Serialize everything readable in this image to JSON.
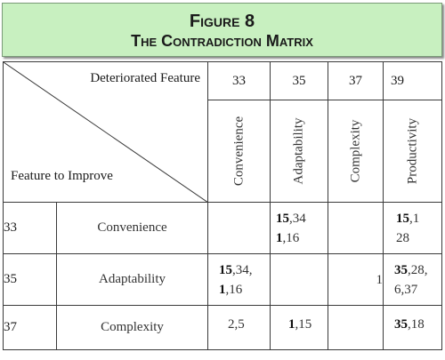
{
  "figure": {
    "line1": "Figure 8",
    "line2": "The Contradiction Matrix"
  },
  "header": {
    "deteriorated_label": "Deteriorated Feature",
    "improve_label": "Feature to Improve",
    "columns": [
      {
        "number": "33",
        "name": "Convenience"
      },
      {
        "number": "35",
        "name": "Adaptability"
      },
      {
        "number": "37",
        "name": "Complexity"
      },
      {
        "number": "39",
        "name": "Productivity"
      }
    ]
  },
  "rows": [
    {
      "number": "33",
      "name": "Convenience",
      "cells": [
        {
          "lines": []
        },
        {
          "lines": [
            [
              {
                "b": "15"
              },
              {
                "t": ",34"
              }
            ],
            [
              {
                "b": "1"
              },
              {
                "t": ",16"
              }
            ]
          ]
        },
        {
          "lines": []
        },
        {
          "lines": [
            [
              {
                "b": "15"
              },
              {
                "t": ",1"
              }
            ],
            [
              {
                "t": "28"
              }
            ]
          ]
        }
      ]
    },
    {
      "number": "35",
      "name": "Adaptability",
      "cells": [
        {
          "lines": [
            [
              {
                "b": "15"
              },
              {
                "t": ",34,"
              }
            ],
            [
              {
                "b": "1"
              },
              {
                "t": ",16"
              }
            ]
          ]
        },
        {
          "lines": []
        },
        {
          "lines": [
            [
              {
                "t": "1"
              }
            ]
          ]
        },
        {
          "lines": [
            [
              {
                "b": "35"
              },
              {
                "t": ",28,"
              }
            ],
            [
              {
                "t": "6,37"
              }
            ]
          ]
        }
      ]
    },
    {
      "number": "37",
      "name": "Complexity",
      "cells": [
        {
          "lines": [
            [
              {
                "t": "2,5"
              }
            ]
          ]
        },
        {
          "lines": [
            [
              {
                "b": "1"
              },
              {
                "t": ",15"
              }
            ]
          ]
        },
        {
          "lines": []
        },
        {
          "lines": [
            [
              {
                "b": "35"
              },
              {
                "t": ",18"
              }
            ]
          ]
        }
      ]
    }
  ]
}
